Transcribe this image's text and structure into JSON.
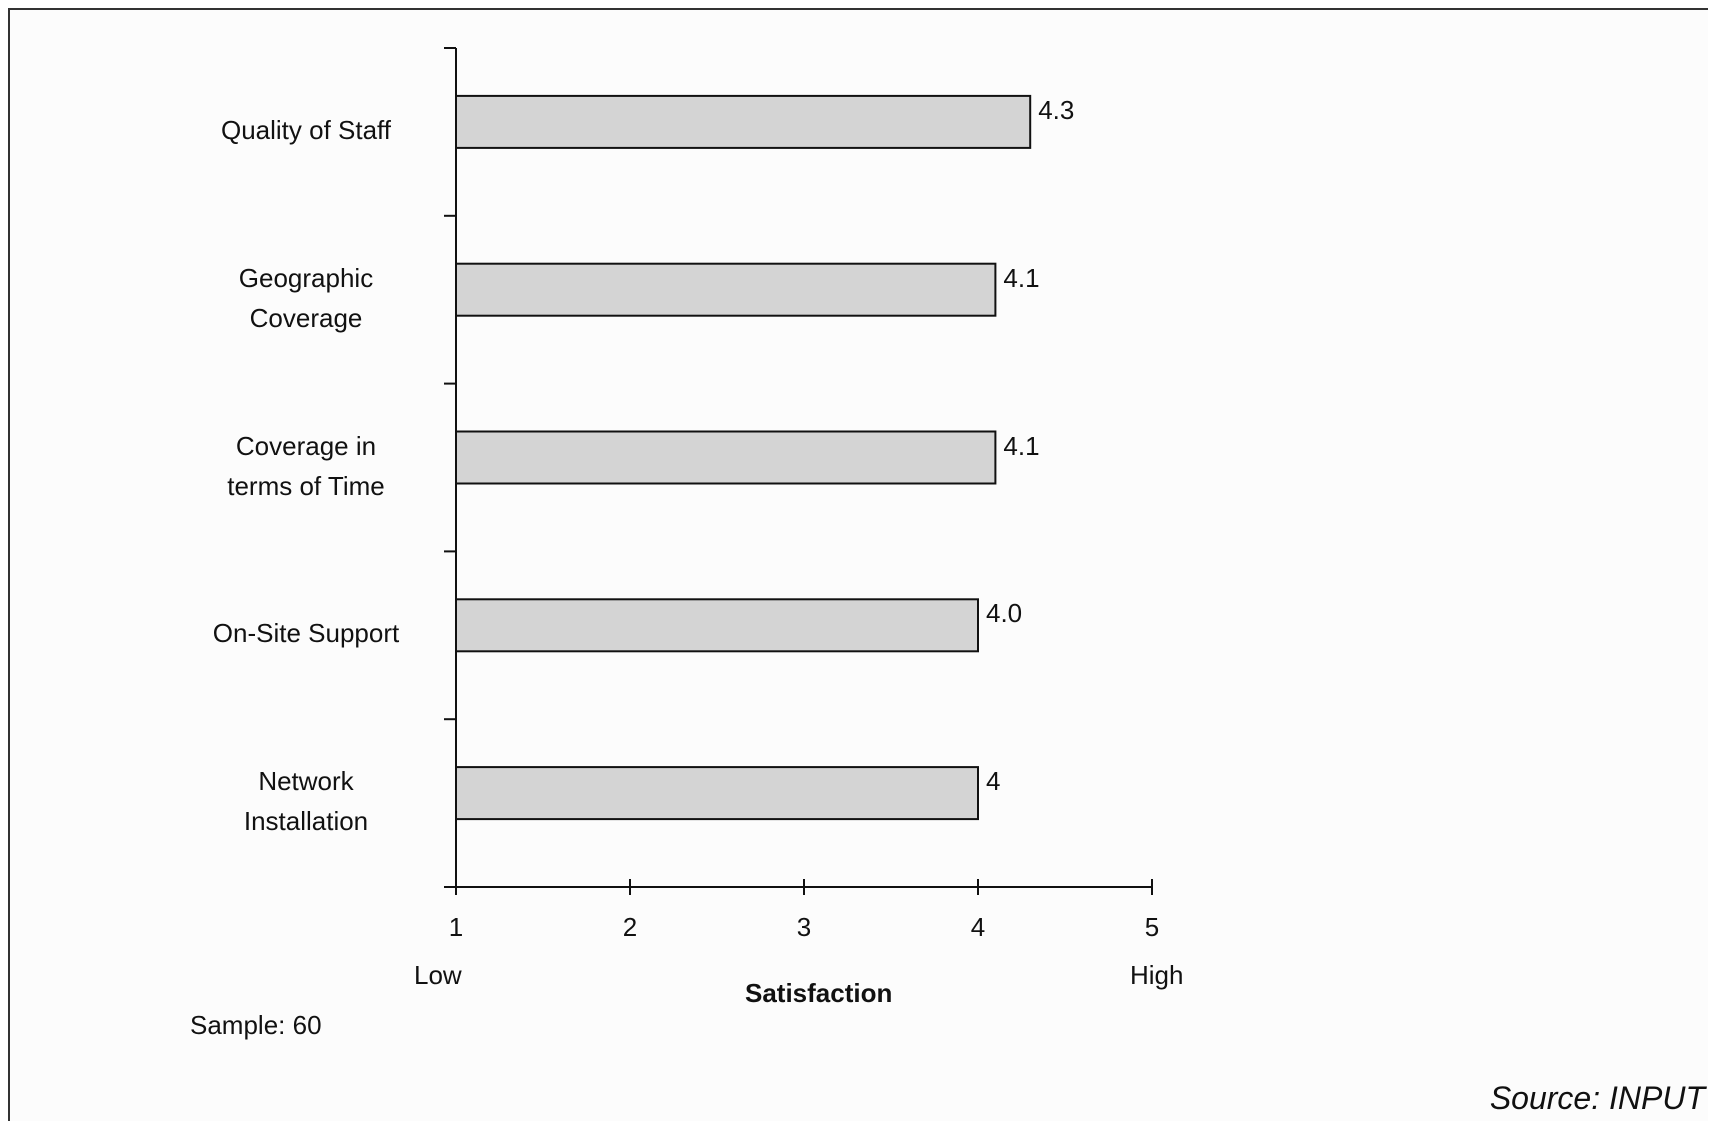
{
  "chart_data": {
    "type": "bar",
    "orientation": "horizontal",
    "categories": [
      "Quality of Staff",
      "Geographic\nCoverage",
      "Coverage in\nterms of Time",
      "On-Site Support",
      "Network\nInstallation"
    ],
    "values": [
      4.3,
      4.1,
      4.1,
      4.0,
      4.0
    ],
    "value_labels": [
      "4.3",
      "4.1",
      "4.1",
      "4.0",
      "4"
    ],
    "xlim": [
      1,
      5
    ],
    "xticks": [
      "1",
      "2",
      "3",
      "4",
      "5"
    ],
    "xlabel": "Satisfaction",
    "x_low_label": "Low",
    "x_high_label": "High",
    "bar_color": "#d4d4d4",
    "bar_edge_color": "#111111",
    "grid": false
  },
  "sample_note": "Sample: 60",
  "source_note": "Source: INPUT"
}
